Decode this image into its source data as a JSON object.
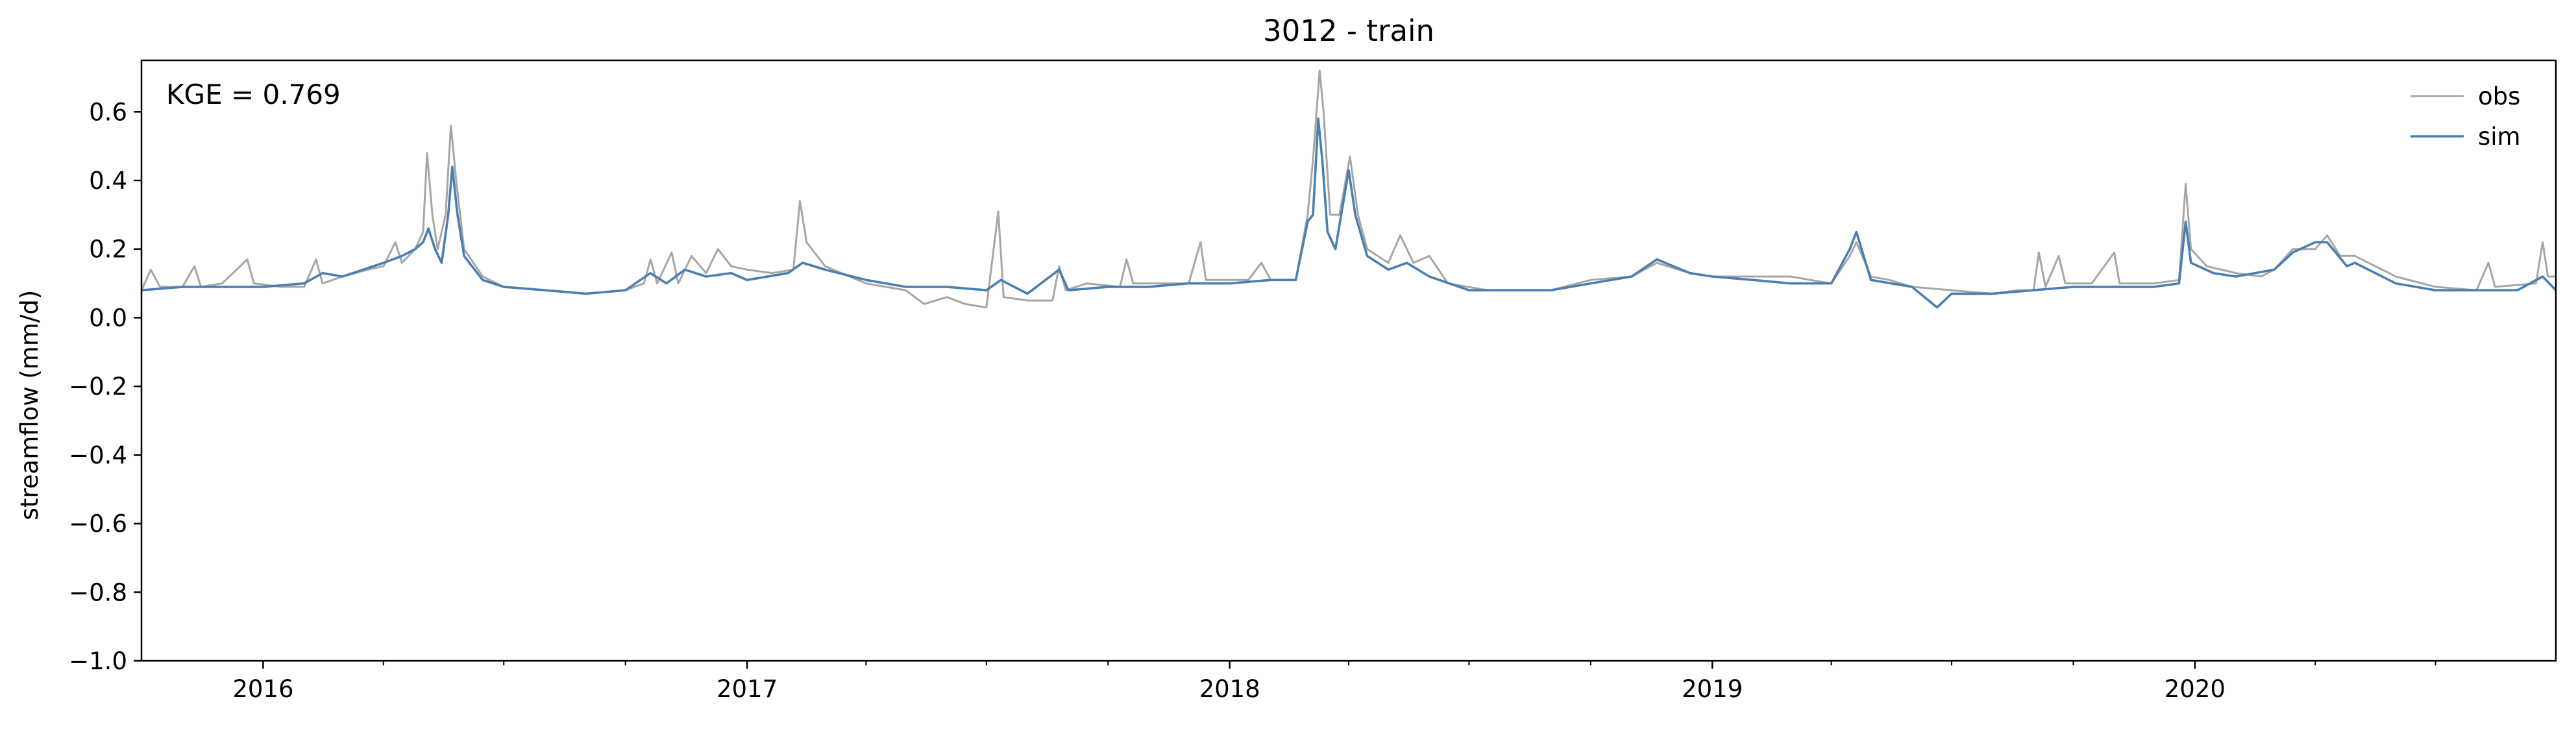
{
  "chart_data": {
    "type": "line",
    "title": "3012 - train",
    "xlabel": "",
    "ylabel": "streamflow (mm/d)",
    "x_range": [
      "2015-10-01",
      "2020-09-30"
    ],
    "ylim": [
      -1.0,
      0.75
    ],
    "y_ticks": [
      -1.0,
      -0.8,
      -0.6,
      -0.4,
      -0.2,
      0.0,
      0.2,
      0.4,
      0.6
    ],
    "y_tick_labels": [
      "−1.0",
      "−0.8",
      "−0.6",
      "−0.4",
      "−0.2",
      "0.0",
      "0.2",
      "0.4",
      "0.6"
    ],
    "x_major_ticks": [
      "2016-01-01",
      "2017-01-01",
      "2018-01-01",
      "2019-01-01",
      "2020-01-01"
    ],
    "x_tick_labels": [
      "2016",
      "2017",
      "2018",
      "2019",
      "2020"
    ],
    "x_minor_ticks": [
      "2016-04-01",
      "2016-07-01",
      "2016-10-01",
      "2017-04-01",
      "2017-07-01",
      "2017-10-01",
      "2018-04-01",
      "2018-07-01",
      "2018-10-01",
      "2019-04-01",
      "2019-07-01",
      "2019-10-01",
      "2020-04-01",
      "2020-07-01"
    ],
    "grid": false,
    "legend_position": "top-right",
    "annotation": "KGE = 0.769",
    "series": [
      {
        "name": "obs",
        "color": "#a6a6a6",
        "points": [
          [
            "2015-10-01",
            0.08
          ],
          [
            "2015-10-08",
            0.14
          ],
          [
            "2015-10-15",
            0.09
          ],
          [
            "2015-11-01",
            0.09
          ],
          [
            "2015-11-10",
            0.15
          ],
          [
            "2015-11-15",
            0.09
          ],
          [
            "2015-12-01",
            0.1
          ],
          [
            "2015-12-20",
            0.17
          ],
          [
            "2015-12-25",
            0.1
          ],
          [
            "2016-01-15",
            0.09
          ],
          [
            "2016-02-01",
            0.09
          ],
          [
            "2016-02-10",
            0.17
          ],
          [
            "2016-02-15",
            0.1
          ],
          [
            "2016-03-01",
            0.12
          ],
          [
            "2016-03-20",
            0.14
          ],
          [
            "2016-04-01",
            0.15
          ],
          [
            "2016-04-10",
            0.22
          ],
          [
            "2016-04-15",
            0.16
          ],
          [
            "2016-04-25",
            0.2
          ],
          [
            "2016-05-01",
            0.25
          ],
          [
            "2016-05-04",
            0.48
          ],
          [
            "2016-05-08",
            0.3
          ],
          [
            "2016-05-12",
            0.2
          ],
          [
            "2016-05-18",
            0.3
          ],
          [
            "2016-05-22",
            0.56
          ],
          [
            "2016-05-26",
            0.4
          ],
          [
            "2016-06-01",
            0.2
          ],
          [
            "2016-06-15",
            0.12
          ],
          [
            "2016-07-01",
            0.09
          ],
          [
            "2016-08-01",
            0.08
          ],
          [
            "2016-09-01",
            0.07
          ],
          [
            "2016-10-01",
            0.08
          ],
          [
            "2016-10-15",
            0.1
          ],
          [
            "2016-10-20",
            0.17
          ],
          [
            "2016-10-25",
            0.1
          ],
          [
            "2016-11-05",
            0.19
          ],
          [
            "2016-11-10",
            0.1
          ],
          [
            "2016-11-20",
            0.18
          ],
          [
            "2016-12-01",
            0.13
          ],
          [
            "2016-12-10",
            0.2
          ],
          [
            "2016-12-20",
            0.15
          ],
          [
            "2017-01-01",
            0.14
          ],
          [
            "2017-01-20",
            0.13
          ],
          [
            "2017-02-05",
            0.14
          ],
          [
            "2017-02-10",
            0.34
          ],
          [
            "2017-02-15",
            0.22
          ],
          [
            "2017-03-01",
            0.15
          ],
          [
            "2017-04-01",
            0.1
          ],
          [
            "2017-05-01",
            0.08
          ],
          [
            "2017-05-15",
            0.04
          ],
          [
            "2017-06-01",
            0.06
          ],
          [
            "2017-06-15",
            0.04
          ],
          [
            "2017-07-01",
            0.03
          ],
          [
            "2017-07-10",
            0.31
          ],
          [
            "2017-07-14",
            0.06
          ],
          [
            "2017-08-01",
            0.05
          ],
          [
            "2017-08-20",
            0.05
          ],
          [
            "2017-08-25",
            0.15
          ],
          [
            "2017-08-30",
            0.08
          ],
          [
            "2017-09-15",
            0.1
          ],
          [
            "2017-10-10",
            0.09
          ],
          [
            "2017-10-15",
            0.17
          ],
          [
            "2017-10-20",
            0.1
          ],
          [
            "2017-11-15",
            0.1
          ],
          [
            "2017-12-01",
            0.1
          ],
          [
            "2017-12-10",
            0.22
          ],
          [
            "2017-12-14",
            0.11
          ],
          [
            "2018-01-15",
            0.11
          ],
          [
            "2018-01-25",
            0.16
          ],
          [
            "2018-02-01",
            0.11
          ],
          [
            "2018-02-20",
            0.11
          ],
          [
            "2018-03-01",
            0.3
          ],
          [
            "2018-03-05",
            0.46
          ],
          [
            "2018-03-10",
            0.72
          ],
          [
            "2018-03-13",
            0.6
          ],
          [
            "2018-03-18",
            0.3
          ],
          [
            "2018-03-25",
            0.3
          ],
          [
            "2018-04-02",
            0.47
          ],
          [
            "2018-04-08",
            0.3
          ],
          [
            "2018-04-15",
            0.2
          ],
          [
            "2018-05-01",
            0.16
          ],
          [
            "2018-05-10",
            0.24
          ],
          [
            "2018-05-20",
            0.16
          ],
          [
            "2018-06-01",
            0.18
          ],
          [
            "2018-06-15",
            0.1
          ],
          [
            "2018-07-15",
            0.08
          ],
          [
            "2018-09-01",
            0.08
          ],
          [
            "2018-10-01",
            0.11
          ],
          [
            "2018-11-01",
            0.12
          ],
          [
            "2018-11-20",
            0.16
          ],
          [
            "2018-12-15",
            0.13
          ],
          [
            "2019-01-01",
            0.12
          ],
          [
            "2019-02-01",
            0.12
          ],
          [
            "2019-03-01",
            0.12
          ],
          [
            "2019-04-01",
            0.1
          ],
          [
            "2019-04-15",
            0.18
          ],
          [
            "2019-04-20",
            0.22
          ],
          [
            "2019-05-01",
            0.12
          ],
          [
            "2019-05-15",
            0.11
          ],
          [
            "2019-06-01",
            0.09
          ],
          [
            "2019-07-01",
            0.08
          ],
          [
            "2019-08-01",
            0.07
          ],
          [
            "2019-08-20",
            0.08
          ],
          [
            "2019-09-01",
            0.08
          ],
          [
            "2019-09-05",
            0.19
          ],
          [
            "2019-09-10",
            0.09
          ],
          [
            "2019-09-20",
            0.18
          ],
          [
            "2019-09-25",
            0.1
          ],
          [
            "2019-10-15",
            0.1
          ],
          [
            "2019-11-01",
            0.19
          ],
          [
            "2019-11-05",
            0.1
          ],
          [
            "2019-12-01",
            0.1
          ],
          [
            "2019-12-20",
            0.11
          ],
          [
            "2019-12-25",
            0.39
          ],
          [
            "2019-12-29",
            0.2
          ],
          [
            "2020-01-10",
            0.15
          ],
          [
            "2020-02-01",
            0.13
          ],
          [
            "2020-02-20",
            0.12
          ],
          [
            "2020-03-01",
            0.14
          ],
          [
            "2020-03-15",
            0.2
          ],
          [
            "2020-04-01",
            0.2
          ],
          [
            "2020-04-10",
            0.24
          ],
          [
            "2020-04-20",
            0.18
          ],
          [
            "2020-05-01",
            0.18
          ],
          [
            "2020-06-01",
            0.12
          ],
          [
            "2020-07-01",
            0.09
          ],
          [
            "2020-08-01",
            0.08
          ],
          [
            "2020-08-10",
            0.16
          ],
          [
            "2020-08-15",
            0.09
          ],
          [
            "2020-09-15",
            0.1
          ],
          [
            "2020-09-20",
            0.22
          ],
          [
            "2020-09-24",
            0.12
          ],
          [
            "2020-09-30",
            0.12
          ]
        ]
      },
      {
        "name": "sim",
        "color": "#4a7fb0",
        "points": [
          [
            "2015-10-01",
            0.08
          ],
          [
            "2015-11-01",
            0.09
          ],
          [
            "2015-12-01",
            0.09
          ],
          [
            "2016-01-01",
            0.09
          ],
          [
            "2016-02-01",
            0.1
          ],
          [
            "2016-02-15",
            0.13
          ],
          [
            "2016-03-01",
            0.12
          ],
          [
            "2016-04-01",
            0.16
          ],
          [
            "2016-04-15",
            0.18
          ],
          [
            "2016-04-25",
            0.2
          ],
          [
            "2016-05-01",
            0.22
          ],
          [
            "2016-05-05",
            0.26
          ],
          [
            "2016-05-10",
            0.2
          ],
          [
            "2016-05-15",
            0.16
          ],
          [
            "2016-05-20",
            0.3
          ],
          [
            "2016-05-23",
            0.44
          ],
          [
            "2016-05-27",
            0.3
          ],
          [
            "2016-06-01",
            0.18
          ],
          [
            "2016-06-15",
            0.11
          ],
          [
            "2016-07-01",
            0.09
          ],
          [
            "2016-08-01",
            0.08
          ],
          [
            "2016-09-01",
            0.07
          ],
          [
            "2016-10-01",
            0.08
          ],
          [
            "2016-10-20",
            0.13
          ],
          [
            "2016-11-01",
            0.1
          ],
          [
            "2016-11-15",
            0.14
          ],
          [
            "2016-12-01",
            0.12
          ],
          [
            "2016-12-20",
            0.13
          ],
          [
            "2017-01-01",
            0.11
          ],
          [
            "2017-02-01",
            0.13
          ],
          [
            "2017-02-12",
            0.16
          ],
          [
            "2017-03-01",
            0.14
          ],
          [
            "2017-04-01",
            0.11
          ],
          [
            "2017-05-01",
            0.09
          ],
          [
            "2017-06-01",
            0.09
          ],
          [
            "2017-07-01",
            0.08
          ],
          [
            "2017-07-12",
            0.11
          ],
          [
            "2017-08-01",
            0.07
          ],
          [
            "2017-08-25",
            0.14
          ],
          [
            "2017-09-01",
            0.08
          ],
          [
            "2017-10-01",
            0.09
          ],
          [
            "2017-11-01",
            0.09
          ],
          [
            "2017-12-01",
            0.1
          ],
          [
            "2018-01-01",
            0.1
          ],
          [
            "2018-02-01",
            0.11
          ],
          [
            "2018-02-20",
            0.11
          ],
          [
            "2018-03-01",
            0.28
          ],
          [
            "2018-03-05",
            0.3
          ],
          [
            "2018-03-09",
            0.58
          ],
          [
            "2018-03-12",
            0.46
          ],
          [
            "2018-03-16",
            0.25
          ],
          [
            "2018-03-22",
            0.2
          ],
          [
            "2018-04-01",
            0.43
          ],
          [
            "2018-04-06",
            0.3
          ],
          [
            "2018-04-15",
            0.18
          ],
          [
            "2018-05-01",
            0.14
          ],
          [
            "2018-05-15",
            0.16
          ],
          [
            "2018-06-01",
            0.12
          ],
          [
            "2018-07-01",
            0.08
          ],
          [
            "2018-08-01",
            0.08
          ],
          [
            "2018-09-01",
            0.08
          ],
          [
            "2018-10-01",
            0.1
          ],
          [
            "2018-11-01",
            0.12
          ],
          [
            "2018-11-20",
            0.17
          ],
          [
            "2018-12-15",
            0.13
          ],
          [
            "2019-01-01",
            0.12
          ],
          [
            "2019-02-01",
            0.11
          ],
          [
            "2019-03-01",
            0.1
          ],
          [
            "2019-04-01",
            0.1
          ],
          [
            "2019-04-15",
            0.2
          ],
          [
            "2019-04-20",
            0.25
          ],
          [
            "2019-05-01",
            0.11
          ],
          [
            "2019-06-01",
            0.09
          ],
          [
            "2019-06-20",
            0.03
          ],
          [
            "2019-07-01",
            0.07
          ],
          [
            "2019-08-01",
            0.07
          ],
          [
            "2019-09-01",
            0.08
          ],
          [
            "2019-10-01",
            0.09
          ],
          [
            "2019-11-01",
            0.09
          ],
          [
            "2019-12-01",
            0.09
          ],
          [
            "2019-12-20",
            0.1
          ],
          [
            "2019-12-25",
            0.28
          ],
          [
            "2019-12-29",
            0.16
          ],
          [
            "2020-01-15",
            0.13
          ],
          [
            "2020-02-01",
            0.12
          ],
          [
            "2020-03-01",
            0.14
          ],
          [
            "2020-03-15",
            0.19
          ],
          [
            "2020-04-01",
            0.22
          ],
          [
            "2020-04-10",
            0.22
          ],
          [
            "2020-04-25",
            0.15
          ],
          [
            "2020-05-01",
            0.16
          ],
          [
            "2020-06-01",
            0.1
          ],
          [
            "2020-07-01",
            0.08
          ],
          [
            "2020-08-01",
            0.08
          ],
          [
            "2020-09-01",
            0.08
          ],
          [
            "2020-09-20",
            0.12
          ],
          [
            "2020-09-30",
            0.08
          ]
        ]
      }
    ]
  }
}
